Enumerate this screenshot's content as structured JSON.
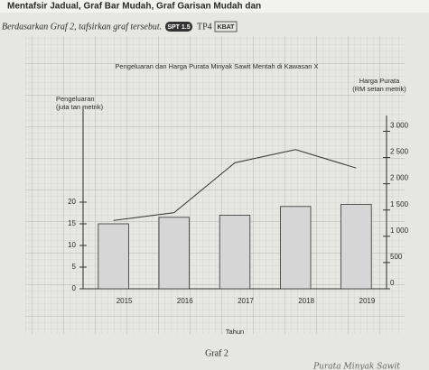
{
  "header": {
    "title": "Mentafsir Jadual, Graf Bar Mudah, Graf Garisan Mudah dan"
  },
  "instruction": {
    "text": "Berdasarkan Graf 2, tafsirkan graf tersebut.",
    "badges": [
      "SPT 1.5",
      "TP4",
      "KBAT"
    ]
  },
  "caption": "Graf 2",
  "handwritten_note": "Purata Minyak Sawit",
  "chart_data": {
    "type": "bar-line",
    "title": "Pengeluaran dan Harga Purata Minyak Sawit Mentah di Kawasan X",
    "xlabel": "Tahun",
    "ylabel": [
      "Pengeluaran",
      "(juta tan metrik)"
    ],
    "y2label": [
      "Harga Purata",
      "(RM setan metrik)"
    ],
    "categories": [
      "2015",
      "2016",
      "2017",
      "2018",
      "2019"
    ],
    "series": [
      {
        "name": "Pengeluaran",
        "type": "bar",
        "color": "#d6d6d6",
        "values": [
          15,
          16.5,
          17,
          19,
          19.5
        ]
      },
      {
        "name": "Harga Purata",
        "type": "line",
        "color": "#333333",
        "axis": "y2",
        "values": [
          1300,
          1450,
          2400,
          2650,
          2300
        ]
      }
    ],
    "ylim": [
      0,
      40
    ],
    "yticks": [
      0,
      5,
      10,
      15,
      20
    ],
    "y2lim": [
      0,
      3300
    ],
    "y2ticks": [
      0,
      500,
      {
        "value": 1000,
        "label": "1 000"
      },
      {
        "value": 1500,
        "label": "1 500"
      },
      {
        "value": 2000,
        "label": "2 000"
      },
      {
        "value": 2500,
        "label": "2 500"
      },
      {
        "value": 3000,
        "label": "3 000"
      }
    ]
  }
}
